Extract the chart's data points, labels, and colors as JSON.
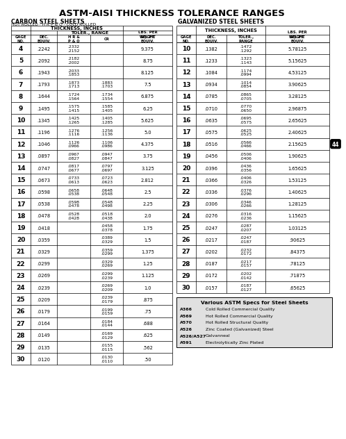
{
  "title": "ASTM-AISI THICKNESS TOLERANCE RANGES",
  "carbon_label": "CARBON STEEL SHEETS",
  "carbon_sublabel": "HOT ROLLED · H R P & O · COLD ROLLED",
  "galv_label": "GALVANIZED STEEL SHEETS",
  "carbon_thickness_header": "THICKNESS, INCHES",
  "carbon_toler_header": "TOLER., RANGE",
  "galv_thickness_header": "THICKNESS, INCHES",
  "carbon_rows": [
    [
      "4",
      ".2242",
      ".2332\n.2152",
      "",
      "9.375"
    ],
    [
      "5",
      ".2092",
      ".2182\n.2002",
      "",
      "8.75"
    ],
    [
      "6",
      ".1943",
      ".2033\n.1853",
      "",
      "8.125"
    ],
    [
      "7",
      ".1793",
      ".1873\n.1713",
      ".1883\n.1703",
      "7.5"
    ],
    [
      "8",
      ".1644",
      ".1724\n.1564",
      ".1734\n.1554",
      "6.875"
    ],
    [
      "9",
      ".1495",
      ".1575\n.1415",
      ".1585\n.1405",
      "6.25"
    ],
    [
      "10",
      ".1345",
      ".1425\n.1265",
      ".1405\n.1285",
      "5.625"
    ],
    [
      "11",
      ".1196",
      ".1276\n.1116",
      ".1256\n.1136",
      "5.0"
    ],
    [
      "12",
      ".1046",
      ".1126\n.0966",
      ".1106\n.0986",
      "4.375"
    ],
    [
      "13",
      ".0897",
      ".0967\n.0827",
      ".0947\n.0847",
      "3.75"
    ],
    [
      "14",
      ".0747",
      ".0817\n.0677",
      ".0797\n.0697",
      "3.125"
    ],
    [
      "15",
      ".0673",
      ".0733\n.0613",
      ".0723\n.0623",
      "2.812"
    ],
    [
      "16",
      ".0598",
      ".0658\n.0538",
      ".0648\n.0548",
      "2.5"
    ],
    [
      "17",
      ".0538",
      ".0598\n.0478",
      ".0548\n.0498",
      "2.25"
    ],
    [
      "18",
      ".0478",
      ".0528\n.0428",
      ".0518\n.0438",
      "2.0"
    ],
    [
      "19",
      ".0418",
      "",
      ".0458\n.0378",
      "1.75"
    ],
    [
      "20",
      ".0359",
      "",
      ".0389\n.0329",
      "1.5"
    ],
    [
      "21",
      ".0329",
      "",
      ".0359\n.0299",
      "1.375"
    ],
    [
      "22",
      ".0299",
      "",
      ".0329\n.0269",
      "1.25"
    ],
    [
      "23",
      ".0269",
      "",
      ".0299\n.0239",
      "1.125"
    ],
    [
      "24",
      ".0239",
      "",
      ".0269\n.0209",
      "1.0"
    ],
    [
      "25",
      ".0209",
      "",
      ".0239\n.0179",
      ".875"
    ],
    [
      "26",
      ".0179",
      "",
      ".0199\n.0159",
      ".75"
    ],
    [
      "27",
      ".0164",
      "",
      ".0184\n.0144",
      ".688"
    ],
    [
      "28",
      ".0149",
      "",
      ".0169\n.0129",
      ".625"
    ],
    [
      "29",
      ".0135",
      "",
      ".0155\n.0115",
      ".562"
    ],
    [
      "30",
      ".0120",
      "",
      ".0130\n.0110",
      ".50"
    ]
  ],
  "galv_rows": [
    [
      "10",
      ".1382",
      ".1472\n.1292",
      "5.78125"
    ],
    [
      "11",
      ".1233",
      ".1323\n.1143",
      "5.15625"
    ],
    [
      "12",
      ".1084",
      ".1174\n.0994",
      "4.53125"
    ],
    [
      "13",
      ".0934",
      ".1014\n.0854",
      "3.90625"
    ],
    [
      "14",
      ".0785",
      ".0865\n.0705",
      "3.28125"
    ],
    [
      "15",
      ".0710",
      ".0770\n.0650",
      "2.96875"
    ],
    [
      "16",
      ".0635",
      ".0695\n.0575",
      "2.65625"
    ],
    [
      "17",
      ".0575",
      ".0625\n.0525",
      "2.40625"
    ],
    [
      "18",
      ".0516",
      ".0566\n.0466",
      "2.15625"
    ],
    [
      "19",
      ".0456",
      ".0506\n.0406",
      "1.90625"
    ],
    [
      "20",
      ".0396",
      ".0436\n.0356",
      "1.65625"
    ],
    [
      "21",
      ".0366",
      ".0406\n.0326",
      "1.53125"
    ],
    [
      "22",
      ".0336",
      ".0376\n.0296",
      "1.40625"
    ],
    [
      "23",
      ".0306",
      ".0346\n.0266",
      "1.28125"
    ],
    [
      "24",
      ".0276",
      ".0316\n.0236",
      "1.15625"
    ],
    [
      "25",
      ".0247",
      ".0287\n.0207",
      "1.03125"
    ],
    [
      "26",
      ".0217",
      ".0247\n.0187",
      ".90625"
    ],
    [
      "27",
      ".0202",
      ".0232\n.0172",
      ".84375"
    ],
    [
      "28",
      ".0187",
      ".0217\n.0157",
      ".78125"
    ],
    [
      "29",
      ".0172",
      ".0202\n.0142",
      ".71875"
    ],
    [
      "30",
      ".0157",
      ".0187\n.0127",
      ".65625"
    ]
  ],
  "astm_specs": [
    [
      "A366",
      "Cold Rolled Commercial Quality"
    ],
    [
      "A569",
      "Hot Rolled Commercial Quality"
    ],
    [
      "A570",
      "Hot Rolled Structural Quality"
    ],
    [
      "A526",
      "Zinc Coated (Galvanized) Steel"
    ],
    [
      "A526/A527",
      "Galvanneal"
    ],
    [
      "A591",
      "Electrolytically Zinc Plated"
    ]
  ],
  "astm_box_title": "Various ASTM Specs for Steel Sheets",
  "note_44": "44",
  "bg_color": "#ffffff",
  "text_color": "#000000",
  "line_color": "#000000",
  "astm_box_bg": "#e0e0e0"
}
